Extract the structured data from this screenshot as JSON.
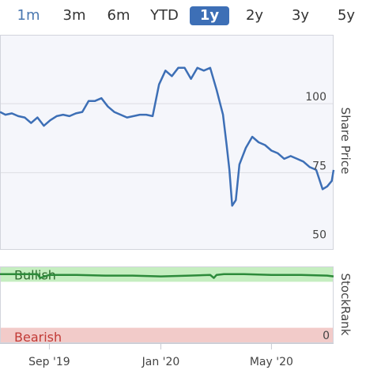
{
  "range_selector": {
    "options": [
      "1m",
      "3m",
      "6m",
      "YTD",
      "1y",
      "2y",
      "3y",
      "5y"
    ],
    "selected": "1y"
  },
  "chart_data": [
    {
      "type": "line",
      "title": "",
      "ylabel": "Share Price",
      "ylim": [
        47,
        125
      ],
      "yticks": [
        100,
        75,
        50
      ],
      "x_range": [
        "2019-07-09",
        "2020-07-08"
      ],
      "xticks": [
        "Sep '19",
        "Jan '20",
        "May '20"
      ],
      "xtick_dates": [
        "2019-09-01",
        "2020-01-01",
        "2020-05-01"
      ],
      "grid": true,
      "series": [
        {
          "color": "#3d6fb6",
          "points": [
            [
              "2019-07-09",
              97
            ],
            [
              "2019-07-15",
              96
            ],
            [
              "2019-07-22",
              96.5
            ],
            [
              "2019-07-29",
              95.5
            ],
            [
              "2019-08-05",
              95
            ],
            [
              "2019-08-12",
              93
            ],
            [
              "2019-08-19",
              95
            ],
            [
              "2019-08-26",
              92
            ],
            [
              "2019-09-02",
              94
            ],
            [
              "2019-09-09",
              95.5
            ],
            [
              "2019-09-16",
              96
            ],
            [
              "2019-09-23",
              95.5
            ],
            [
              "2019-09-30",
              96.5
            ],
            [
              "2019-10-07",
              97
            ],
            [
              "2019-10-14",
              101
            ],
            [
              "2019-10-21",
              101
            ],
            [
              "2019-10-28",
              102
            ],
            [
              "2019-11-04",
              99
            ],
            [
              "2019-11-11",
              97
            ],
            [
              "2019-11-18",
              96
            ],
            [
              "2019-11-25",
              95
            ],
            [
              "2019-12-02",
              95.5
            ],
            [
              "2019-12-09",
              96
            ],
            [
              "2019-12-16",
              96
            ],
            [
              "2019-12-23",
              95.5
            ],
            [
              "2019-12-30",
              107
            ],
            [
              "2020-01-06",
              112
            ],
            [
              "2020-01-13",
              110
            ],
            [
              "2020-01-20",
              113
            ],
            [
              "2020-01-27",
              113
            ],
            [
              "2020-02-03",
              109
            ],
            [
              "2020-02-10",
              113
            ],
            [
              "2020-02-17",
              112
            ],
            [
              "2020-02-24",
              113
            ],
            [
              "2020-03-02",
              105
            ],
            [
              "2020-03-09",
              96
            ],
            [
              "2020-03-13",
              85
            ],
            [
              "2020-03-16",
              76
            ],
            [
              "2020-03-19",
              63
            ],
            [
              "2020-03-23",
              65
            ],
            [
              "2020-03-27",
              78
            ],
            [
              "2020-04-03",
              84
            ],
            [
              "2020-04-10",
              88
            ],
            [
              "2020-04-17",
              86
            ],
            [
              "2020-04-24",
              85
            ],
            [
              "2020-05-01",
              83
            ],
            [
              "2020-05-08",
              82
            ],
            [
              "2020-05-15",
              80
            ],
            [
              "2020-05-22",
              81
            ],
            [
              "2020-05-29",
              80
            ],
            [
              "2020-06-05",
              79
            ],
            [
              "2020-06-12",
              77
            ],
            [
              "2020-06-19",
              76
            ],
            [
              "2020-06-26",
              69
            ],
            [
              "2020-07-01",
              70
            ],
            [
              "2020-07-06",
              72
            ],
            [
              "2020-07-08",
              76
            ]
          ]
        }
      ]
    },
    {
      "type": "line",
      "title": "",
      "ylabel": "StockRank",
      "ylim": [
        0,
        100
      ],
      "yticks": [
        0
      ],
      "x_range": [
        "2019-07-09",
        "2020-07-08"
      ],
      "bands": [
        {
          "label": "Bullish",
          "from": 80,
          "to": 100,
          "color": "#c5eec0"
        },
        {
          "label": "Bearish",
          "from": 0,
          "to": 20,
          "color": "#f2cbc9"
        }
      ],
      "series": [
        {
          "color": "#2c8a3a",
          "points": [
            [
              "2019-07-09",
              90
            ],
            [
              "2019-08-01",
              90
            ],
            [
              "2019-08-19",
              90
            ],
            [
              "2019-08-22",
              85
            ],
            [
              "2019-09-01",
              89
            ],
            [
              "2019-10-01",
              89
            ],
            [
              "2019-11-01",
              88
            ],
            [
              "2019-12-01",
              88
            ],
            [
              "2020-01-01",
              87
            ],
            [
              "2020-02-01",
              88
            ],
            [
              "2020-02-24",
              89
            ],
            [
              "2020-02-28",
              85
            ],
            [
              "2020-03-02",
              89
            ],
            [
              "2020-03-10",
              90
            ],
            [
              "2020-04-01",
              90
            ],
            [
              "2020-05-01",
              89
            ],
            [
              "2020-06-01",
              89
            ],
            [
              "2020-07-01",
              88
            ],
            [
              "2020-07-08",
              87
            ]
          ]
        }
      ]
    }
  ]
}
